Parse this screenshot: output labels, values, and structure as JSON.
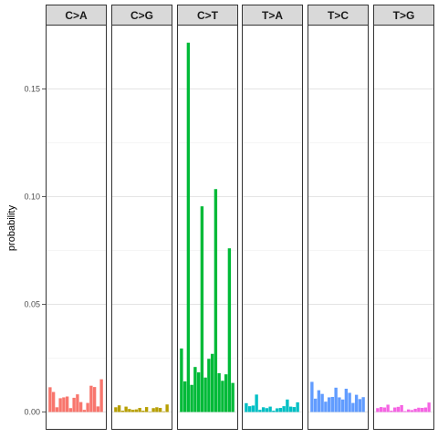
{
  "chart_data": {
    "type": "bar",
    "title": "",
    "xlabel": "",
    "ylabel": "probability",
    "ylim": [
      0,
      0.176
    ],
    "yticks": [
      0.0,
      0.05,
      0.1,
      0.15
    ],
    "ytick_labels": [
      "0.00",
      "0.05",
      "0.10",
      "0.15"
    ],
    "grid": true,
    "facets": [
      {
        "label": "C>A",
        "color": "#F8766D",
        "values": [
          0.0115,
          0.0093,
          0.0022,
          0.0064,
          0.0068,
          0.0072,
          0.0018,
          0.0066,
          0.0082,
          0.0046,
          0.001,
          0.0042,
          0.0122,
          0.0116,
          0.0026,
          0.0152
        ]
      },
      {
        "label": "C>G",
        "color": "#B79F00",
        "values": [
          0.0022,
          0.0031,
          0.0006,
          0.0025,
          0.0014,
          0.001,
          0.0012,
          0.0019,
          0.0006,
          0.0023,
          0.0002,
          0.0018,
          0.0022,
          0.0019,
          0.0003,
          0.0035
        ]
      },
      {
        "label": "C>T",
        "color": "#00BA38",
        "values": [
          0.0295,
          0.0142,
          0.1715,
          0.0126,
          0.0209,
          0.0184,
          0.0955,
          0.016,
          0.0247,
          0.027,
          0.1035,
          0.018,
          0.0145,
          0.0175,
          0.076,
          0.0135
        ]
      },
      {
        "label": "T>A",
        "color": "#00BFC4",
        "values": [
          0.0041,
          0.0027,
          0.003,
          0.0081,
          0.001,
          0.0022,
          0.0018,
          0.0025,
          0.0006,
          0.0017,
          0.0019,
          0.0027,
          0.0058,
          0.0025,
          0.0023,
          0.0045
        ]
      },
      {
        "label": "T>C",
        "color": "#619CFF",
        "values": [
          0.014,
          0.0062,
          0.0101,
          0.0084,
          0.0048,
          0.0068,
          0.007,
          0.0113,
          0.0068,
          0.0058,
          0.0108,
          0.0089,
          0.0042,
          0.008,
          0.006,
          0.0069
        ]
      },
      {
        "label": "T>G",
        "color": "#F564E3",
        "values": [
          0.0018,
          0.0023,
          0.0021,
          0.0034,
          0.0006,
          0.0021,
          0.0024,
          0.0032,
          0.0004,
          0.0012,
          0.0009,
          0.0015,
          0.002,
          0.0019,
          0.0021,
          0.0044
        ]
      }
    ]
  }
}
